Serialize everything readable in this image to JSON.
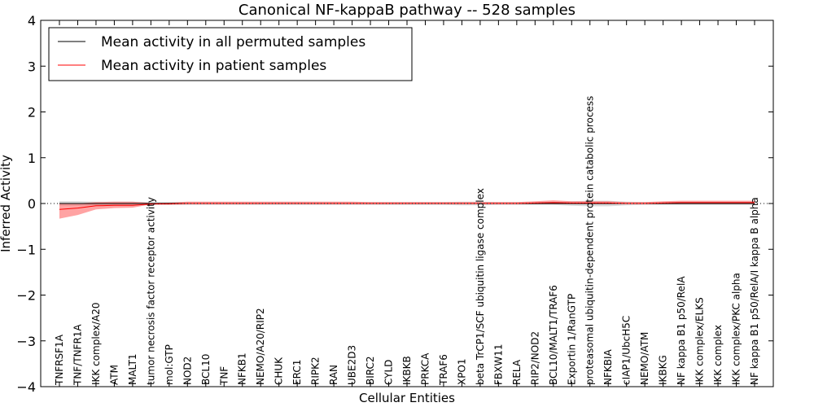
{
  "chart_data": {
    "type": "line",
    "title": "Canonical NF-kappaB pathway -- 528 samples",
    "xlabel": "Cellular Entities",
    "ylabel": "Inferred Activity",
    "ylim": [
      -4,
      4
    ],
    "yticks": [
      4,
      3,
      2,
      1,
      0,
      -1,
      -2,
      -3,
      -4
    ],
    "ytick_labels": [
      "4",
      "3",
      "2",
      "1",
      "0",
      "−1",
      "−2",
      "−3",
      "−4"
    ],
    "legend_position": "top-left",
    "categories": [
      "TNFRSF1A",
      "TNF/TNFR1A",
      "IKK complex/A20",
      "ATM",
      "MALT1",
      "tumor necrosis factor receptor activity",
      "mol:GTP",
      "NOD2",
      "BCL10",
      "TNF",
      "NFKB1",
      "NEMO/A20/RIP2",
      "CHUK",
      "ERC1",
      "RIPK2",
      "RAN",
      "UBE2D3",
      "BIRC2",
      "CYLD",
      "IKBKB",
      "PRKCA",
      "TRAF6",
      "XPO1",
      "beta TrCP1/SCF ubiquitin ligase complex",
      "FBXW11",
      "RELA",
      "RIP2/NOD2",
      "BCL10/MALT1/TRAF6",
      "Exportin 1/RanGTP",
      "proteasomal ubiquitin-dependent protein catabolic process",
      "NFKBIA",
      "cIAP1/UbcH5C",
      "NEMO/ATM",
      "IKBKG",
      "NF kappa B1 p50/RelA",
      "IKK complex/ELKS",
      "IKK complex",
      "IKK complex/PKC alpha",
      "NF kappa B1 p50/RelA/I kappa B alpha"
    ],
    "series": [
      {
        "name": "Mean activity in all permuted samples",
        "color": "#000000",
        "band_color": "#a9a9a9",
        "values": [
          0.0,
          0.0,
          0.0,
          0.0,
          0.0,
          0.0,
          0.0,
          0.0,
          0.0,
          0.0,
          0.0,
          0.0,
          0.0,
          0.0,
          0.0,
          0.0,
          0.0,
          0.0,
          0.0,
          0.0,
          0.0,
          0.0,
          0.0,
          0.0,
          0.0,
          0.0,
          0.0,
          0.0,
          0.0,
          0.0,
          0.0,
          0.0,
          0.0,
          0.0,
          0.0,
          0.0,
          0.0,
          0.0,
          0.0
        ],
        "lower": [
          -0.05,
          -0.05,
          -0.04,
          -0.04,
          -0.04,
          -0.03,
          -0.03,
          -0.03,
          -0.03,
          -0.03,
          -0.03,
          -0.03,
          -0.03,
          -0.03,
          -0.03,
          -0.03,
          -0.03,
          -0.03,
          -0.03,
          -0.03,
          -0.03,
          -0.03,
          -0.04,
          -0.04,
          -0.03,
          -0.03,
          -0.03,
          -0.03,
          -0.05,
          -0.06,
          -0.06,
          -0.04,
          -0.03,
          -0.03,
          -0.03,
          -0.03,
          -0.03,
          -0.03,
          -0.03
        ],
        "upper": [
          0.05,
          0.05,
          0.04,
          0.04,
          0.04,
          0.03,
          0.03,
          0.03,
          0.03,
          0.03,
          0.03,
          0.03,
          0.03,
          0.03,
          0.03,
          0.03,
          0.03,
          0.03,
          0.03,
          0.03,
          0.03,
          0.03,
          0.04,
          0.04,
          0.03,
          0.03,
          0.03,
          0.03,
          0.05,
          0.06,
          0.06,
          0.04,
          0.03,
          0.03,
          0.03,
          0.03,
          0.03,
          0.03,
          0.03
        ]
      },
      {
        "name": "Mean activity in patient samples",
        "color": "#ff0000",
        "band_color": "#ff6666",
        "values": [
          -0.13,
          -0.1,
          -0.05,
          -0.04,
          -0.04,
          -0.01,
          -0.01,
          0.0,
          0.0,
          0.0,
          0.0,
          0.0,
          0.0,
          0.0,
          0.0,
          0.0,
          0.0,
          0.0,
          0.0,
          0.0,
          0.0,
          0.0,
          0.0,
          0.0,
          0.0,
          0.0,
          0.01,
          0.02,
          0.01,
          0.01,
          0.01,
          0.0,
          0.0,
          0.01,
          0.02,
          0.02,
          0.02,
          0.02,
          0.02
        ],
        "lower": [
          -0.33,
          -0.25,
          -0.13,
          -0.1,
          -0.09,
          -0.02,
          -0.01,
          -0.01,
          -0.01,
          -0.01,
          -0.01,
          -0.01,
          -0.01,
          -0.01,
          -0.01,
          -0.01,
          -0.01,
          -0.01,
          -0.01,
          -0.01,
          -0.01,
          -0.01,
          -0.01,
          -0.01,
          -0.01,
          -0.01,
          -0.01,
          -0.01,
          -0.01,
          -0.01,
          -0.01,
          -0.01,
          -0.01,
          -0.01,
          -0.01,
          -0.01,
          -0.01,
          -0.01,
          -0.01
        ],
        "upper": [
          0.0,
          0.0,
          0.03,
          0.04,
          0.04,
          0.01,
          0.02,
          0.04,
          0.04,
          0.04,
          0.04,
          0.04,
          0.04,
          0.04,
          0.04,
          0.04,
          0.04,
          0.03,
          0.03,
          0.03,
          0.03,
          0.03,
          0.03,
          0.03,
          0.03,
          0.03,
          0.05,
          0.07,
          0.05,
          0.05,
          0.05,
          0.03,
          0.03,
          0.05,
          0.06,
          0.06,
          0.06,
          0.06,
          0.06
        ]
      }
    ]
  }
}
